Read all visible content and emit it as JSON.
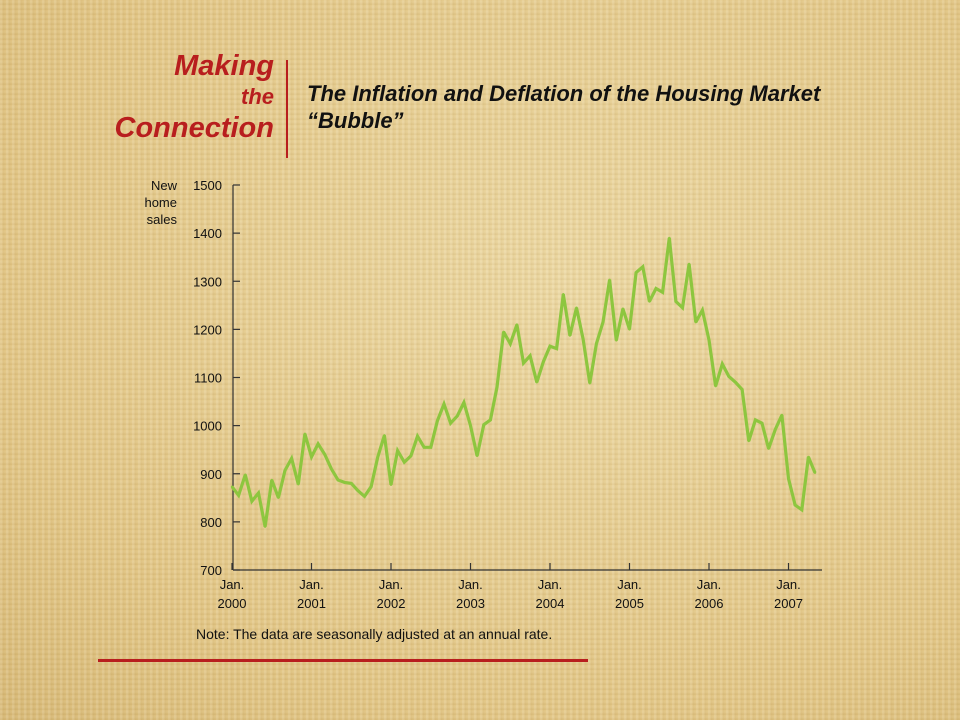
{
  "brand": {
    "line1": "Making",
    "line2": "the",
    "line3": "Connection"
  },
  "title": "The Inflation and Deflation of the Housing Market “Bubble”",
  "note": "Note:  The data are seasonally adjusted at an annual rate.",
  "colors": {
    "accent": "#b81e1e",
    "series": "#8dc63f"
  },
  "chart_data": {
    "type": "line",
    "ylabel": [
      "New",
      "home",
      "sales"
    ],
    "ylim": [
      700,
      1500
    ],
    "yticks": [
      1500,
      1400,
      1300,
      1200,
      1100,
      1000,
      900,
      800,
      700
    ],
    "xticks": [
      {
        "x": "2000-01",
        "top": "Jan.",
        "bottom": "2000"
      },
      {
        "x": "2001-01",
        "top": "Jan.",
        "bottom": "2001"
      },
      {
        "x": "2002-01",
        "top": "Jan.",
        "bottom": "2002"
      },
      {
        "x": "2003-01",
        "top": "Jan.",
        "bottom": "2003"
      },
      {
        "x": "2004-01",
        "top": "Jan.",
        "bottom": "2004"
      },
      {
        "x": "2005-01",
        "top": "Jan.",
        "bottom": "2005"
      },
      {
        "x": "2006-01",
        "top": "Jan.",
        "bottom": "2006"
      },
      {
        "x": "2007-01",
        "top": "Jan.",
        "bottom": "2007"
      }
    ],
    "grid": false,
    "series": [
      {
        "points": [
          [
            "2000-01",
            873
          ],
          [
            "2000-02",
            855
          ],
          [
            "2000-03",
            898
          ],
          [
            "2000-04",
            843
          ],
          [
            "2000-05",
            860
          ],
          [
            "2000-06",
            790
          ],
          [
            "2000-07",
            887
          ],
          [
            "2000-08",
            850
          ],
          [
            "2000-09",
            907
          ],
          [
            "2000-10",
            932
          ],
          [
            "2000-11",
            878
          ],
          [
            "2000-12",
            983
          ],
          [
            "2001-01",
            935
          ],
          [
            "2001-02",
            962
          ],
          [
            "2001-03",
            940
          ],
          [
            "2001-04",
            910
          ],
          [
            "2001-05",
            887
          ],
          [
            "2001-06",
            882
          ],
          [
            "2001-07",
            880
          ],
          [
            "2001-08",
            865
          ],
          [
            "2001-09",
            853
          ],
          [
            "2001-10",
            873
          ],
          [
            "2001-11",
            935
          ],
          [
            "2001-12",
            980
          ],
          [
            "2002-01",
            877
          ],
          [
            "2002-02",
            948
          ],
          [
            "2002-03",
            924
          ],
          [
            "2002-04",
            937
          ],
          [
            "2002-05",
            978
          ],
          [
            "2002-06",
            955
          ],
          [
            "2002-07",
            955
          ],
          [
            "2002-08",
            1010
          ],
          [
            "2002-09",
            1045
          ],
          [
            "2002-10",
            1005
          ],
          [
            "2002-11",
            1020
          ],
          [
            "2002-12",
            1048
          ],
          [
            "2003-01",
            1000
          ],
          [
            "2003-02",
            937
          ],
          [
            "2003-03",
            1002
          ],
          [
            "2003-04",
            1012
          ],
          [
            "2003-05",
            1080
          ],
          [
            "2003-06",
            1195
          ],
          [
            "2003-07",
            1170
          ],
          [
            "2003-08",
            1210
          ],
          [
            "2003-09",
            1130
          ],
          [
            "2003-10",
            1145
          ],
          [
            "2003-11",
            1090
          ],
          [
            "2003-12",
            1133
          ],
          [
            "2004-01",
            1165
          ],
          [
            "2004-02",
            1160
          ],
          [
            "2004-03",
            1273
          ],
          [
            "2004-04",
            1187
          ],
          [
            "2004-05",
            1245
          ],
          [
            "2004-06",
            1180
          ],
          [
            "2004-07",
            1088
          ],
          [
            "2004-08",
            1170
          ],
          [
            "2004-09",
            1215
          ],
          [
            "2004-10",
            1303
          ],
          [
            "2004-11",
            1177
          ],
          [
            "2004-12",
            1243
          ],
          [
            "2005-01",
            1200
          ],
          [
            "2005-02",
            1318
          ],
          [
            "2005-03",
            1330
          ],
          [
            "2005-04",
            1258
          ],
          [
            "2005-05",
            1285
          ],
          [
            "2005-06",
            1277
          ],
          [
            "2005-07",
            1390
          ],
          [
            "2005-08",
            1258
          ],
          [
            "2005-09",
            1245
          ],
          [
            "2005-10",
            1336
          ],
          [
            "2005-11",
            1215
          ],
          [
            "2005-12",
            1240
          ],
          [
            "2006-01",
            1178
          ],
          [
            "2006-02",
            1082
          ],
          [
            "2006-03",
            1128
          ],
          [
            "2006-04",
            1102
          ],
          [
            "2006-05",
            1090
          ],
          [
            "2006-06",
            1075
          ],
          [
            "2006-07",
            968
          ],
          [
            "2006-08",
            1012
          ],
          [
            "2006-09",
            1005
          ],
          [
            "2006-10",
            952
          ],
          [
            "2006-11",
            992
          ],
          [
            "2006-12",
            1022
          ],
          [
            "2007-01",
            890
          ],
          [
            "2007-02",
            835
          ],
          [
            "2007-03",
            825
          ],
          [
            "2007-04",
            935
          ],
          [
            "2007-05",
            902
          ]
        ]
      }
    ]
  }
}
